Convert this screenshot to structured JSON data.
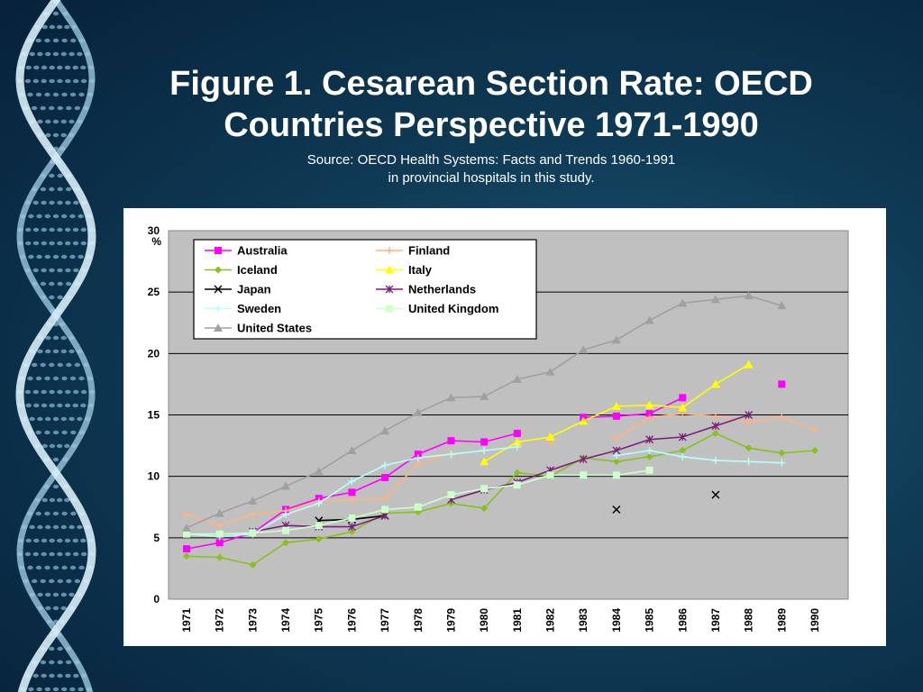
{
  "slide": {
    "title_line1": "Figure 1. Cesarean Section Rate: OECD",
    "title_line2": "Countries Perspective 1971-1990",
    "source_line1": "Source: OECD Health Systems: Facts and Trends 1960-1991",
    "source_line2": "in provincial hospitals in this study."
  },
  "colors": {
    "Australia": "#ff00ff",
    "Finland": "#ffb380",
    "Iceland": "#88c020",
    "Italy": "#ffff00",
    "Japan": "#000000",
    "Netherlands": "#7a1f7a",
    "Sweden": "#b8ffff",
    "United Kingdom": "#ccffcc",
    "United States": "#a0a0a0"
  },
  "chart_data": {
    "type": "line",
    "ylabel": "%",
    "ylim": [
      0,
      30
    ],
    "yticks": [
      0,
      5,
      10,
      15,
      20,
      25,
      30
    ],
    "grid": "horizontal",
    "legend": "top-left",
    "x": [
      "1971",
      "1972",
      "1973",
      "1974",
      "1975",
      "1976",
      "1977",
      "1978",
      "1979",
      "1980",
      "1981",
      "1982",
      "1983",
      "1984",
      "1985",
      "1986",
      "1987",
      "1988",
      "1989",
      "1990"
    ],
    "series": [
      {
        "name": "Australia",
        "marker": "square",
        "values": [
          4.1,
          4.6,
          5.4,
          7.3,
          8.2,
          8.7,
          9.9,
          11.8,
          12.9,
          12.8,
          13.5,
          null,
          14.8,
          14.9,
          15.1,
          16.4,
          null,
          null,
          17.5,
          null
        ]
      },
      {
        "name": "Finland",
        "marker": "plus",
        "values": [
          6.9,
          6.0,
          6.9,
          7.2,
          8.0,
          8.1,
          8.2,
          11.0,
          11.9,
          null,
          null,
          12.7,
          null,
          13.1,
          14.8,
          15.1,
          14.9,
          14.4,
          14.8,
          13.8
        ]
      },
      {
        "name": "Iceland",
        "marker": "diamond",
        "values": [
          3.5,
          3.4,
          2.8,
          4.6,
          4.9,
          5.5,
          7.0,
          7.1,
          7.8,
          7.4,
          10.3,
          10.0,
          11.5,
          11.2,
          11.6,
          12.1,
          13.5,
          12.3,
          11.9,
          12.1
        ]
      },
      {
        "name": "Italy",
        "marker": "triangle",
        "values": [
          null,
          null,
          null,
          null,
          null,
          null,
          null,
          null,
          null,
          11.2,
          12.8,
          13.2,
          14.5,
          15.7,
          15.8,
          15.6,
          17.5,
          19.1,
          null,
          null
        ]
      },
      {
        "name": "Japan",
        "marker": "x",
        "values": [
          null,
          null,
          null,
          null,
          6.4,
          6.5,
          6.8,
          null,
          null,
          null,
          null,
          null,
          null,
          7.3,
          null,
          null,
          8.5,
          null,
          null,
          null
        ]
      },
      {
        "name": "Netherlands",
        "marker": "star",
        "values": [
          null,
          null,
          5.5,
          6.0,
          5.9,
          5.9,
          6.8,
          null,
          8.1,
          8.9,
          9.5,
          10.5,
          11.4,
          12.1,
          13.0,
          13.2,
          14.1,
          15.0,
          null,
          null
        ]
      },
      {
        "name": "Sweden",
        "marker": "plus",
        "values": [
          5.3,
          5.1,
          5.3,
          6.9,
          7.8,
          9.6,
          10.9,
          11.5,
          11.8,
          12.1,
          12.4,
          null,
          null,
          11.7,
          12.1,
          11.6,
          11.3,
          11.2,
          11.1,
          null
        ]
      },
      {
        "name": "United Kingdom",
        "marker": "square",
        "values": [
          5.3,
          5.3,
          5.4,
          5.6,
          6.0,
          6.6,
          7.3,
          7.5,
          8.5,
          9.0,
          9.3,
          10.1,
          10.1,
          10.1,
          10.5,
          null,
          null,
          null,
          null,
          null
        ]
      },
      {
        "name": "United States",
        "marker": "triangle",
        "values": [
          5.8,
          7.0,
          8.0,
          9.2,
          10.4,
          12.1,
          13.7,
          15.2,
          16.4,
          16.5,
          17.9,
          18.5,
          20.3,
          21.1,
          22.7,
          24.1,
          24.4,
          24.7,
          23.9,
          null
        ]
      }
    ]
  }
}
